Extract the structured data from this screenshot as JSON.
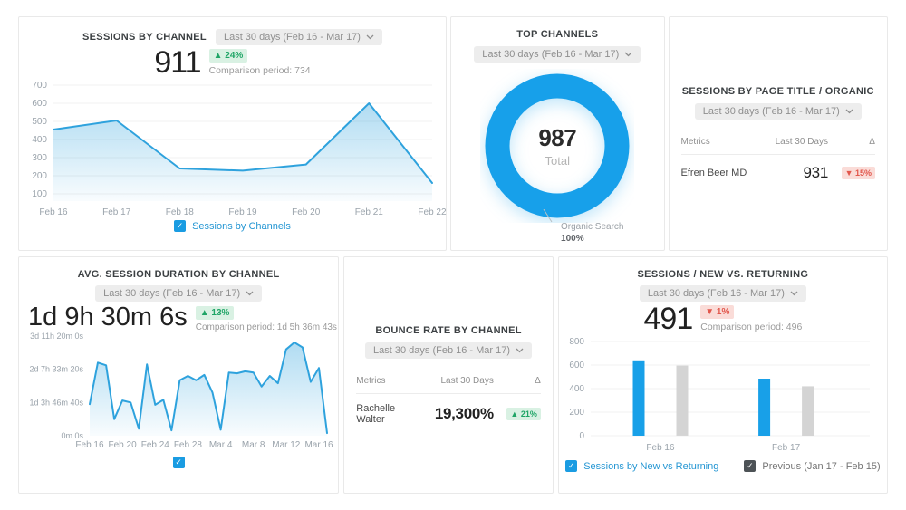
{
  "accent": "#18a0e8",
  "panels": {
    "sessions_by_channel": {
      "title": "SESSIONS BY CHANNEL",
      "date_range": "Last 30 days (Feb 16 - Mar 17)",
      "value": "911",
      "delta": "▲ 24%",
      "comparison": "Comparison period: 734"
    },
    "top_channels": {
      "title": "TOP CHANNELS",
      "date_range": "Last 30 days (Feb 16 - Mar 17)"
    },
    "sessions_by_page_title": {
      "title": "SESSIONS BY PAGE TITLE / ORGANIC",
      "date_range": "Last 30 days (Feb 16 - Mar 17)",
      "table": {
        "headers": [
          "Metrics",
          "Last 30 Days",
          "Δ"
        ],
        "rows": [
          {
            "metric": "Efren Beer MD",
            "value": "931",
            "delta": "▼ 15%",
            "delta_dir": "down"
          }
        ]
      }
    },
    "avg_session_duration": {
      "title": "AVG. SESSION DURATION BY CHANNEL",
      "date_range": "Last 30 days (Feb 16 - Mar 17)",
      "value": "1d 9h 30m 6s",
      "delta": "▲ 13%",
      "comparison": "Comparison period: 1d 5h 36m 43s"
    },
    "bounce_rate": {
      "title": "BOUNCE RATE BY CHANNEL",
      "date_range": "Last 30 days (Feb 16 - Mar 17)",
      "table": {
        "headers": [
          "Metrics",
          "Last 30 Days",
          "Δ"
        ],
        "rows": [
          {
            "metric": "Rachelle Walter",
            "value": "19,300%",
            "delta": "▲ 21%",
            "delta_dir": "up"
          }
        ]
      }
    },
    "new_vs_returning": {
      "title": "SESSIONS / NEW VS. RETURNING",
      "date_range": "Last 30 days (Feb 16 - Mar 17)",
      "value": "491",
      "delta": "▼ 1%",
      "comparison": "Comparison period: 496"
    }
  },
  "chart_data": [
    {
      "id": "chart-sessions",
      "type": "line",
      "title": "Sessions by Channel",
      "x": [
        "Feb 16",
        "Feb 17",
        "Feb 18",
        "Feb 19",
        "Feb 20",
        "Feb 21",
        "Feb 22"
      ],
      "values": [
        455,
        505,
        240,
        228,
        262,
        600,
        160
      ],
      "ylim": [
        60,
        700
      ],
      "yticks": [
        {
          "v": 100,
          "label": "100"
        },
        {
          "v": 200,
          "label": "200"
        },
        {
          "v": 300,
          "label": "300"
        },
        {
          "v": 400,
          "label": "400"
        },
        {
          "v": 500,
          "label": "500"
        },
        {
          "v": 600,
          "label": "600"
        },
        {
          "v": 700,
          "label": "700"
        }
      ],
      "xticks": [
        {
          "i": 0,
          "label": "Feb 16"
        },
        {
          "i": 1,
          "label": "Feb 17"
        },
        {
          "i": 2,
          "label": "Feb 18"
        },
        {
          "i": 3,
          "label": "Feb 19"
        },
        {
          "i": 4,
          "label": "Feb 20"
        },
        {
          "i": 5,
          "label": "Feb 21"
        },
        {
          "i": 6,
          "label": "Feb 22"
        }
      ],
      "color": "#2ea2dd",
      "grid": true,
      "legend": [
        "Sessions by Channels"
      ],
      "legend_position": "bottom"
    },
    {
      "id": "chart-top-channels",
      "type": "pie",
      "title": "Top Channels",
      "total": "987",
      "total_label": "Total",
      "slices": [
        {
          "label": "Organic Search",
          "pct": 100,
          "display_pct": "100%",
          "color": "#17a0ea"
        }
      ]
    },
    {
      "id": "chart-duration",
      "type": "line",
      "title": "Avg. Session Duration by Channel",
      "x": [
        "Feb 16",
        "Feb 17",
        "Feb 18",
        "Feb 19",
        "Feb 20",
        "Feb 21",
        "Feb 22",
        "Feb 23",
        "Feb 24",
        "Feb 25",
        "Feb 26",
        "Feb 27",
        "Feb 28",
        "Mar 1",
        "Mar 2",
        "Mar 3",
        "Mar 4",
        "Mar 5",
        "Mar 6",
        "Mar 7",
        "Mar 8",
        "Mar 9",
        "Mar 10",
        "Mar 11",
        "Mar 12",
        "Mar 13",
        "Mar 14",
        "Mar 15",
        "Mar 16",
        "Mar 17"
      ],
      "values": [
        95000,
        220000,
        212000,
        50000,
        106000,
        100000,
        21000,
        215000,
        93000,
        108000,
        16000,
        167000,
        180000,
        167000,
        183000,
        130000,
        18000,
        190000,
        188000,
        194000,
        190000,
        148000,
        180000,
        158000,
        260000,
        281000,
        266000,
        162000,
        204000,
        8000
      ],
      "unit": "seconds",
      "ylim": [
        0,
        300000
      ],
      "yticks": [
        {
          "v": 0,
          "label": "0m 0s"
        },
        {
          "v": 100000,
          "label": "1d 3h 46m 40s"
        },
        {
          "v": 200000,
          "label": "2d 7h 33m 20s"
        },
        {
          "v": 300000,
          "label": "3d 11h 20m 0s"
        }
      ],
      "xticks": [
        {
          "i": 0,
          "label": "Feb 16"
        },
        {
          "i": 4,
          "label": "Feb 20"
        },
        {
          "i": 8,
          "label": "Feb 24"
        },
        {
          "i": 12,
          "label": "Feb 28"
        },
        {
          "i": 16,
          "label": "Mar 4"
        },
        {
          "i": 20,
          "label": "Mar 8"
        },
        {
          "i": 24,
          "label": "Mar 12"
        },
        {
          "i": 28,
          "label": "Mar 16"
        }
      ],
      "color": "#2ea2dd",
      "grid": false,
      "legend": [
        ""
      ],
      "legend_position": "bottom"
    },
    {
      "id": "chart-bars",
      "type": "bar",
      "title": "Sessions / New vs. Returning",
      "categories": [
        "Feb 16",
        "Feb 17"
      ],
      "series": [
        {
          "name": "Sessions by New vs Returning",
          "color": "#18a0e8",
          "values": [
            640,
            485
          ]
        },
        {
          "name": "Previous (Jan 17 - Feb 15)",
          "color": "#d4d4d4",
          "values": [
            595,
            420
          ]
        }
      ],
      "ylim": [
        0,
        800
      ],
      "yticks": [
        {
          "v": 0,
          "label": "0"
        },
        {
          "v": 200,
          "label": "200"
        },
        {
          "v": 400,
          "label": "400"
        },
        {
          "v": 600,
          "label": "600"
        },
        {
          "v": 800,
          "label": "800"
        }
      ],
      "cat_centers": [
        0.25,
        0.7
      ],
      "grid": true,
      "legend_position": "bottom"
    }
  ]
}
